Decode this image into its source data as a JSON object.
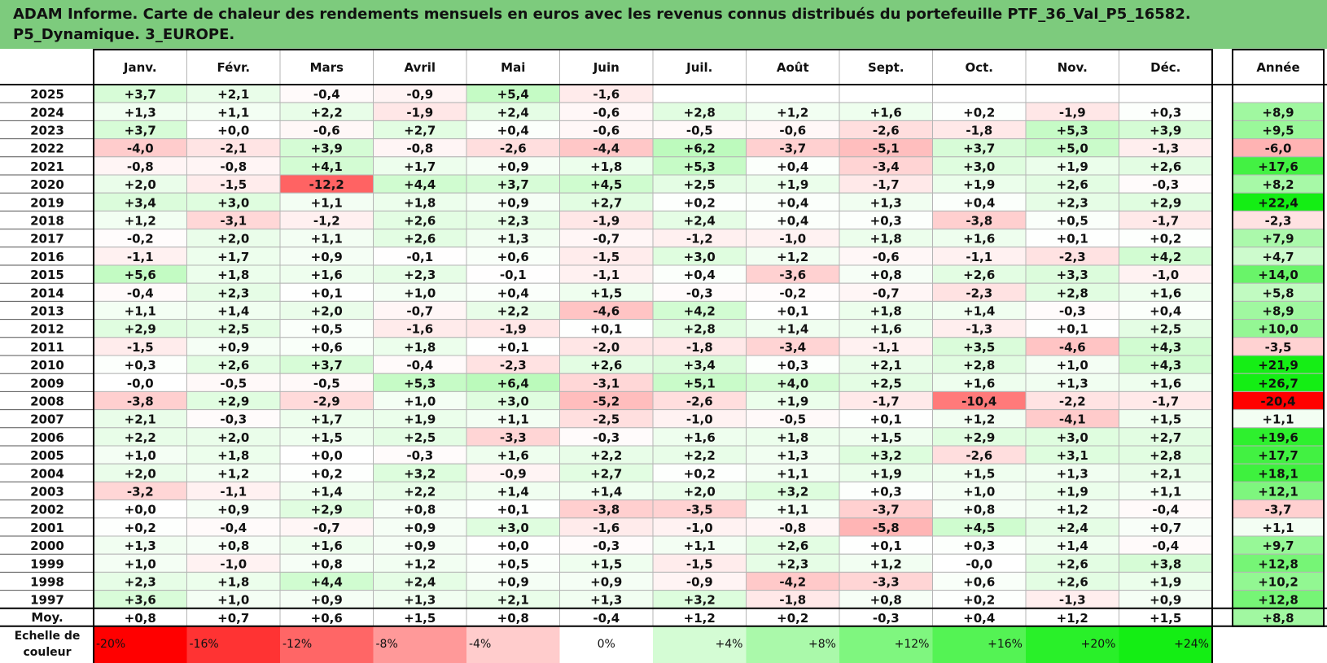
{
  "title_line1": "ADAM Informe. Carte de chaleur des rendements mensuels en euros avec les revenus connus distribués du portefeuille PTF_36_Val_P5_16582.",
  "title_line2": "P5_Dynamique. 3_EUROPE.",
  "chart_data": {
    "type": "heatmap",
    "corner_label": "",
    "months": [
      "Janv.",
      "Févr.",
      "Mars",
      "Avril",
      "Mai",
      "Juin",
      "Juil.",
      "Août",
      "Sept.",
      "Oct.",
      "Nov.",
      "Déc."
    ],
    "year_header": "Année",
    "years": [
      "2025",
      "2024",
      "2023",
      "2022",
      "2021",
      "2020",
      "2019",
      "2018",
      "2017",
      "2016",
      "2015",
      "2014",
      "2013",
      "2012",
      "2011",
      "2010",
      "2009",
      "2008",
      "2007",
      "2006",
      "2005",
      "2004",
      "2003",
      "2002",
      "2001",
      "2000",
      "1999",
      "1998",
      "1997"
    ],
    "monthly": [
      [
        "+3,7",
        "+2,1",
        "-0,4",
        "-0,9",
        "+5,4",
        "-1,6",
        "",
        "",
        "",
        "",
        "",
        ""
      ],
      [
        "+1,3",
        "+1,1",
        "+2,2",
        "-1,9",
        "+2,4",
        "-0,6",
        "+2,8",
        "+1,2",
        "+1,6",
        "+0,2",
        "-1,9",
        "+0,3"
      ],
      [
        "+3,7",
        "+0,0",
        "-0,6",
        "+2,7",
        "+0,4",
        "-0,6",
        "-0,5",
        "-0,6",
        "-2,6",
        "-1,8",
        "+5,3",
        "+3,9"
      ],
      [
        "-4,0",
        "-2,1",
        "+3,9",
        "-0,8",
        "-2,6",
        "-4,4",
        "+6,2",
        "-3,7",
        "-5,1",
        "+3,7",
        "+5,0",
        "-1,3"
      ],
      [
        "-0,8",
        "-0,8",
        "+4,1",
        "+1,7",
        "+0,9",
        "+1,8",
        "+5,3",
        "+0,4",
        "-3,4",
        "+3,0",
        "+1,9",
        "+2,6"
      ],
      [
        "+2,0",
        "-1,5",
        "-12,2",
        "+4,4",
        "+3,7",
        "+4,5",
        "+2,5",
        "+1,9",
        "-1,7",
        "+1,9",
        "+2,6",
        "-0,3"
      ],
      [
        "+3,4",
        "+3,0",
        "+1,1",
        "+1,8",
        "+0,9",
        "+2,7",
        "+0,2",
        "+0,4",
        "+1,3",
        "+0,4",
        "+2,3",
        "+2,9"
      ],
      [
        "+1,2",
        "-3,1",
        "-1,2",
        "+2,6",
        "+2,3",
        "-1,9",
        "+2,4",
        "+0,4",
        "+0,3",
        "-3,8",
        "+0,5",
        "-1,7"
      ],
      [
        "-0,2",
        "+2,0",
        "+1,1",
        "+2,6",
        "+1,3",
        "-0,7",
        "-1,2",
        "-1,0",
        "+1,8",
        "+1,6",
        "+0,1",
        "+0,2"
      ],
      [
        "-1,1",
        "+1,7",
        "+0,9",
        "-0,1",
        "+0,6",
        "-1,5",
        "+3,0",
        "+1,2",
        "-0,6",
        "-1,1",
        "-2,3",
        "+4,2"
      ],
      [
        "+5,6",
        "+1,8",
        "+1,6",
        "+2,3",
        "-0,1",
        "-1,1",
        "+0,4",
        "-3,6",
        "+0,8",
        "+2,6",
        "+3,3",
        "-1,0"
      ],
      [
        "-0,4",
        "+2,3",
        "+0,1",
        "+1,0",
        "+0,4",
        "+1,5",
        "-0,3",
        "-0,2",
        "-0,7",
        "-2,3",
        "+2,8",
        "+1,6"
      ],
      [
        "+1,1",
        "+1,4",
        "+2,0",
        "-0,7",
        "+2,2",
        "-4,6",
        "+4,2",
        "+0,1",
        "+1,8",
        "+1,4",
        "-0,3",
        "+0,4"
      ],
      [
        "+2,9",
        "+2,5",
        "+0,5",
        "-1,6",
        "-1,9",
        "+0,1",
        "+2,8",
        "+1,4",
        "+1,6",
        "-1,3",
        "+0,1",
        "+2,5"
      ],
      [
        "-1,5",
        "+0,9",
        "+0,6",
        "+1,8",
        "+0,1",
        "-2,0",
        "-1,8",
        "-3,4",
        "-1,1",
        "+3,5",
        "-4,6",
        "+4,3"
      ],
      [
        "+0,3",
        "+2,6",
        "+3,7",
        "-0,4",
        "-2,3",
        "+2,6",
        "+3,4",
        "+0,3",
        "+2,1",
        "+2,8",
        "+1,0",
        "+4,3"
      ],
      [
        "-0,0",
        "-0,5",
        "-0,5",
        "+5,3",
        "+6,4",
        "-3,1",
        "+5,1",
        "+4,0",
        "+2,5",
        "+1,6",
        "+1,3",
        "+1,6"
      ],
      [
        "-3,8",
        "+2,9",
        "-2,9",
        "+1,0",
        "+3,0",
        "-5,2",
        "-2,6",
        "+1,9",
        "-1,7",
        "-10,4",
        "-2,2",
        "-1,7"
      ],
      [
        "+2,1",
        "-0,3",
        "+1,7",
        "+1,9",
        "+1,1",
        "-2,5",
        "-1,0",
        "-0,5",
        "+0,1",
        "+1,2",
        "-4,1",
        "+1,5"
      ],
      [
        "+2,2",
        "+2,0",
        "+1,5",
        "+2,5",
        "-3,3",
        "-0,3",
        "+1,6",
        "+1,8",
        "+1,5",
        "+2,9",
        "+3,0",
        "+2,7"
      ],
      [
        "+1,0",
        "+1,8",
        "+0,0",
        "-0,3",
        "+1,6",
        "+2,2",
        "+2,2",
        "+1,3",
        "+3,2",
        "-2,6",
        "+3,1",
        "+2,8"
      ],
      [
        "+2,0",
        "+1,2",
        "+0,2",
        "+3,2",
        "-0,9",
        "+2,7",
        "+0,2",
        "+1,1",
        "+1,9",
        "+1,5",
        "+1,3",
        "+2,1"
      ],
      [
        "-3,2",
        "-1,1",
        "+1,4",
        "+2,2",
        "+1,4",
        "+1,4",
        "+2,0",
        "+3,2",
        "+0,3",
        "+1,0",
        "+1,9",
        "+1,1"
      ],
      [
        "+0,0",
        "+0,9",
        "+2,9",
        "+0,8",
        "+0,1",
        "-3,8",
        "-3,5",
        "+1,1",
        "-3,7",
        "+0,8",
        "+1,2",
        "-0,4"
      ],
      [
        "+0,2",
        "-0,4",
        "-0,7",
        "+0,9",
        "+3,0",
        "-1,6",
        "-1,0",
        "-0,8",
        "-5,8",
        "+4,5",
        "+2,4",
        "+0,7"
      ],
      [
        "+1,3",
        "+0,8",
        "+1,6",
        "+0,9",
        "+0,0",
        "-0,3",
        "+1,1",
        "+2,6",
        "+0,1",
        "+0,3",
        "+1,4",
        "-0,4"
      ],
      [
        "+1,0",
        "-1,0",
        "+0,8",
        "+1,2",
        "+0,5",
        "+1,5",
        "-1,5",
        "+2,3",
        "+1,2",
        "-0,0",
        "+2,6",
        "+3,8"
      ],
      [
        "+2,3",
        "+1,8",
        "+4,4",
        "+2,4",
        "+0,9",
        "+0,9",
        "-0,9",
        "-4,2",
        "-3,3",
        "+0,6",
        "+2,6",
        "+1,9"
      ],
      [
        "+3,6",
        "+1,0",
        "+0,9",
        "+1,3",
        "+2,1",
        "+1,3",
        "+3,2",
        "-1,8",
        "+0,8",
        "+0,2",
        "-1,3",
        "+0,9"
      ]
    ],
    "annual": [
      "",
      "+8,9",
      "+9,5",
      "-6,0",
      "+17,6",
      "+8,2",
      "+22,4",
      "-2,3",
      "+7,9",
      "+4,7",
      "+14,0",
      "+5,8",
      "+8,9",
      "+10,0",
      "-3,5",
      "+21,9",
      "+26,7",
      "-20,4",
      "+1,1",
      "+19,6",
      "+17,7",
      "+18,1",
      "+12,1",
      "-3,7",
      "+1,1",
      "+9,7",
      "+12,8",
      "+10,2",
      "+12,8"
    ],
    "average_label": "Moy.",
    "average": [
      "+0,8",
      "+0,7",
      "+0,6",
      "+1,5",
      "+0,8",
      "-0,4",
      "+1,2",
      "+0,2",
      "-0,3",
      "+0,4",
      "+1,2",
      "+1,5"
    ],
    "average_annual": "+8,8",
    "scale_label": [
      "Echelle de",
      "couleur"
    ],
    "scale": [
      {
        "label": "-20%",
        "value": -20
      },
      {
        "label": "-16%",
        "value": -16
      },
      {
        "label": "-12%",
        "value": -12
      },
      {
        "label": "-8%",
        "value": -8
      },
      {
        "label": "-4%",
        "value": -4
      },
      {
        "label": "0%",
        "value": 0
      },
      {
        "label": "+4%",
        "value": 4
      },
      {
        "label": "+8%",
        "value": 8
      },
      {
        "label": "+12%",
        "value": 12
      },
      {
        "label": "+16%",
        "value": 16
      },
      {
        "label": "+20%",
        "value": 20
      },
      {
        "label": "+24%",
        "value": 24
      }
    ],
    "colors": {
      "negative_max": "#ff0000",
      "neutral": "#ffffff",
      "positive_max": "#00e600",
      "header_bg": "#7dcb7d"
    }
  }
}
